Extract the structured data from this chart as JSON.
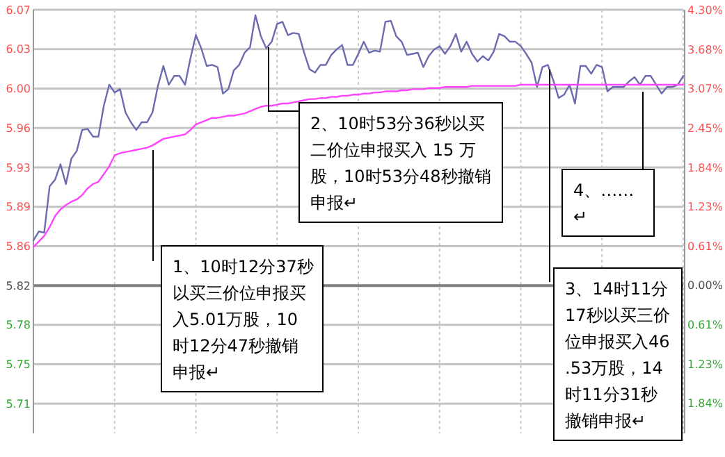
{
  "chart_data": {
    "type": "line",
    "categories": [
      null,
      null,
      null,
      null,
      null,
      null,
      null,
      null,
      null,
      null,
      null,
      null,
      null,
      null,
      null,
      null,
      null,
      null,
      null,
      null,
      null,
      null,
      null,
      null,
      null,
      null,
      null,
      null,
      null,
      null,
      null,
      null,
      null,
      null,
      null,
      null,
      null,
      null,
      null,
      null,
      null,
      null,
      null,
      null,
      null,
      null,
      null,
      null,
      null,
      null,
      null,
      null,
      null,
      null,
      null,
      null,
      null,
      null,
      null,
      null,
      null,
      null,
      null,
      null,
      null,
      null,
      null,
      null,
      null,
      null,
      null,
      null,
      null,
      null,
      null,
      null,
      null,
      null,
      null,
      null,
      null,
      null,
      null,
      null,
      null,
      null,
      null,
      null,
      null,
      null,
      null,
      null,
      null,
      null,
      null,
      null,
      null,
      null,
      null,
      null,
      null,
      null,
      null,
      null,
      null,
      null,
      null,
      null,
      null,
      null,
      null,
      null,
      null,
      null,
      null,
      null,
      null,
      null,
      null,
      null,
      null
    ],
    "ylim": [
      5.686,
      6.07
    ],
    "yticks": [
      {
        "value": 6.07,
        "label": "6.07"
      },
      {
        "value": 6.0343,
        "label": "6.03"
      },
      {
        "value": 5.9986,
        "label": "6.00"
      },
      {
        "value": 5.9629,
        "label": "5.96"
      },
      {
        "value": 5.9271,
        "label": "5.93"
      },
      {
        "value": 5.8914,
        "label": "5.89"
      },
      {
        "value": 5.8557,
        "label": "5.86"
      },
      {
        "value": 5.82,
        "label": "5.82"
      },
      {
        "value": 5.7843,
        "label": "5.78"
      },
      {
        "value": 5.7486,
        "label": "5.75"
      },
      {
        "value": 5.7129,
        "label": "5.71"
      }
    ],
    "y2lim": [
      -2.31,
      4.3
    ],
    "y2ticks": [
      {
        "value": 4.3,
        "label": "4.30%"
      },
      {
        "value": 3.68,
        "label": "3.68%"
      },
      {
        "value": 3.07,
        "label": "3.07%"
      },
      {
        "value": 2.45,
        "label": "2.45%"
      },
      {
        "value": 1.84,
        "label": "1.84%"
      },
      {
        "value": 1.23,
        "label": "1.23%"
      },
      {
        "value": 0.61,
        "label": "0.61%"
      },
      {
        "value": 0,
        "label": "0.00%"
      },
      {
        "value": -0.61,
        "label": "0.61%"
      },
      {
        "value": -1.23,
        "label": "1.23%"
      },
      {
        "value": -1.84,
        "label": "1.84%"
      }
    ],
    "grid": true,
    "marker": "none",
    "ref_lines": [
      {
        "axis": "y",
        "value": 5.82,
        "color": "#808080"
      }
    ],
    "series": [
      {
        "color": "#6b6bb0",
        "values": [
          5.861,
          5.869,
          5.868,
          5.91,
          5.916,
          5.93,
          5.912,
          5.935,
          5.942,
          5.961,
          5.962,
          5.955,
          5.955,
          5.983,
          6.002,
          5.995,
          5.998,
          5.977,
          5.968,
          5.961,
          5.968,
          5.968,
          5.977,
          6.001,
          6.019,
          6.002,
          6.01,
          6.01,
          6.002,
          6.026,
          6.047,
          6.035,
          6.019,
          6.02,
          6.018,
          5.994,
          5.998,
          6.015,
          6.02,
          6.031,
          6.036,
          6.065,
          6.046,
          6.035,
          6.041,
          6.057,
          6.059,
          6.047,
          6.049,
          6.048,
          6.031,
          6.016,
          6.013,
          6.02,
          6.02,
          6.029,
          6.034,
          6.038,
          6.02,
          6.02,
          6.03,
          6.041,
          6.031,
          6.033,
          6.032,
          6.059,
          6.06,
          6.046,
          6.041,
          6.029,
          6.03,
          6.031,
          6.018,
          6.028,
          6.034,
          6.037,
          6.03,
          6.037,
          6.048,
          6.032,
          6.041,
          6.03,
          6.023,
          6.028,
          6.024,
          6.032,
          6.048,
          6.046,
          6.041,
          6.041,
          6.037,
          6.03,
          6.022,
          6.0,
          6.018,
          6.02,
          6.006,
          5.99,
          5.993,
          6.002,
          5.985,
          6.019,
          6.019,
          6.012,
          6.02,
          6.018,
          5.996,
          6.0,
          6.0,
          6.0,
          6.005,
          6.009,
          6.002,
          6.01,
          6.01,
          6.002,
          5.994,
          6.0,
          6.0,
          6.002,
          6.01
        ]
      },
      {
        "color": "#ff44ff",
        "values": [
          5.855,
          5.86,
          5.865,
          5.873,
          5.883,
          5.889,
          5.893,
          5.896,
          5.898,
          5.902,
          5.908,
          5.912,
          5.914,
          5.921,
          5.928,
          5.938,
          5.94,
          5.941,
          5.942,
          5.943,
          5.944,
          5.945,
          5.947,
          5.95,
          5.953,
          5.954,
          5.955,
          5.956,
          5.957,
          5.961,
          5.966,
          5.968,
          5.97,
          5.972,
          5.972,
          5.973,
          5.974,
          5.974,
          5.975,
          5.976,
          5.978,
          5.98,
          5.982,
          5.983,
          5.983,
          5.984,
          5.985,
          5.985,
          5.986,
          5.987,
          5.988,
          5.989,
          5.989,
          5.99,
          5.99,
          5.991,
          5.991,
          5.992,
          5.992,
          5.993,
          5.993,
          5.994,
          5.994,
          5.995,
          5.995,
          5.996,
          5.996,
          5.996,
          5.997,
          5.997,
          5.998,
          5.998,
          5.998,
          5.999,
          5.999,
          5.999,
          6.0,
          6.0,
          6.0,
          6.0,
          6.0,
          6.001,
          6.001,
          6.001,
          6.001,
          6.001,
          6.001,
          6.001,
          6.001,
          6.001,
          6.002,
          6.002,
          6.002,
          6.002,
          6.002,
          6.002,
          6.002,
          6.002,
          6.002,
          6.002,
          6.002,
          6.002,
          6.002,
          6.002,
          6.002,
          6.002,
          6.002,
          6.002,
          6.002,
          6.002,
          6.002,
          6.002,
          6.002,
          6.002,
          6.002,
          6.002,
          6.002,
          6.002,
          6.002,
          6.002,
          6.002
        ]
      }
    ],
    "annotations": [
      "1、10时12分37秒以买三价位申报买入5.01万股，10时12分47秒撤销申报↵",
      "2、10时53分36秒以买二价位申报买入 15 万股，10时53分48秒撤销申报↵",
      "3、14时11分17秒以买三价位申报买入46.53万股，14时11分31秒撤销申报↵",
      "4、……↵"
    ]
  }
}
